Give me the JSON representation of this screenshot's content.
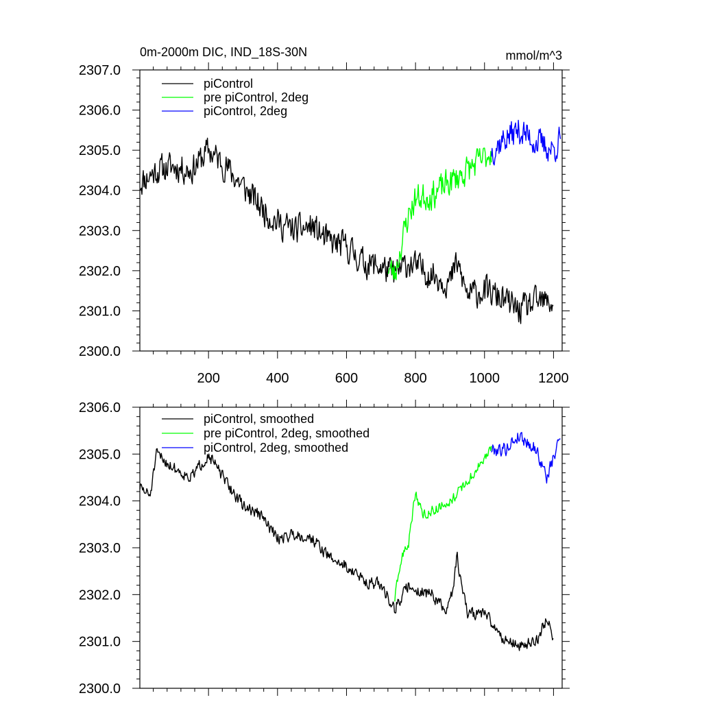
{
  "chart_data": [
    {
      "type": "line",
      "title_left": "0m-2000m DIC, IND_18S-30N",
      "title_right": "mmol/m^3",
      "xlim": [
        1,
        1225
      ],
      "ylim": [
        2300.0,
        2307.0
      ],
      "yticks": [
        2300.0,
        2301.0,
        2302.0,
        2303.0,
        2304.0,
        2305.0,
        2306.0,
        2307.0
      ],
      "ytick_labels": [
        "2300.0",
        "2301.0",
        "2302.0",
        "2303.0",
        "2304.0",
        "2305.0",
        "2306.0",
        "2307.0"
      ],
      "xticks": [
        200,
        400,
        600,
        800,
        1000,
        1200
      ],
      "xtick_labels": [
        "200",
        "400",
        "600",
        "800",
        "1000",
        "1200"
      ],
      "legend_position": "top-left",
      "series": [
        {
          "name": "piControl",
          "color": "#000000",
          "x_start": 1,
          "x_end": 1200,
          "anchors": [
            [
              1,
              2304.2
            ],
            [
              50,
              2304.5
            ],
            [
              100,
              2304.6
            ],
            [
              150,
              2304.5
            ],
            [
              200,
              2305.0
            ],
            [
              250,
              2304.6
            ],
            [
              300,
              2304.1
            ],
            [
              350,
              2303.6
            ],
            [
              400,
              2303.2
            ],
            [
              450,
              2303.0
            ],
            [
              500,
              2303.1
            ],
            [
              550,
              2302.7
            ],
            [
              600,
              2302.6
            ],
            [
              650,
              2302.2
            ],
            [
              700,
              2302.1
            ],
            [
              740,
              2301.9
            ],
            [
              780,
              2302.2
            ],
            [
              800,
              2302.1
            ],
            [
              850,
              2301.9
            ],
            [
              900,
              2301.7
            ],
            [
              920,
              2302.2
            ],
            [
              950,
              2301.4
            ],
            [
              1000,
              2301.5
            ],
            [
              1050,
              2301.3
            ],
            [
              1100,
              2301.0
            ],
            [
              1150,
              2301.2
            ],
            [
              1200,
              2301.2
            ]
          ],
          "noise": 0.5,
          "seed": 11
        },
        {
          "name": "pre piControl, 2deg",
          "color": "#00ff00",
          "x_start": 720,
          "x_end": 1020,
          "anchors": [
            [
              720,
              2302.1
            ],
            [
              740,
              2301.9
            ],
            [
              760,
              2302.7
            ],
            [
              780,
              2303.4
            ],
            [
              800,
              2303.8
            ],
            [
              850,
              2303.9
            ],
            [
              900,
              2304.2
            ],
            [
              950,
              2304.5
            ],
            [
              1000,
              2304.8
            ],
            [
              1020,
              2305.0
            ]
          ],
          "noise": 0.5,
          "seed": 23
        },
        {
          "name": "piControl, 2deg",
          "color": "#0000ff",
          "x_start": 1020,
          "x_end": 1220,
          "anchors": [
            [
              1020,
              2305.0
            ],
            [
              1060,
              2305.3
            ],
            [
              1100,
              2305.5
            ],
            [
              1150,
              2305.2
            ],
            [
              1200,
              2305.0
            ],
            [
              1220,
              2305.3
            ]
          ],
          "noise": 0.5,
          "seed": 37
        }
      ]
    },
    {
      "type": "line",
      "xlim": [
        1,
        1225
      ],
      "ylim": [
        2300.0,
        2306.0
      ],
      "yticks": [
        2300.0,
        2301.0,
        2302.0,
        2303.0,
        2304.0,
        2305.0,
        2306.0
      ],
      "ytick_labels": [
        "2300.0",
        "2301.0",
        "2302.0",
        "2303.0",
        "2304.0",
        "2305.0",
        "2306.0"
      ],
      "xticks": [
        200,
        400,
        600,
        800,
        1000,
        1200
      ],
      "legend_position": "top-left",
      "series": [
        {
          "name": "piControl, smoothed",
          "color": "#000000",
          "x_start": 1,
          "x_end": 1200,
          "anchors": [
            [
              1,
              2304.3
            ],
            [
              30,
              2304.1
            ],
            [
              50,
              2305.0
            ],
            [
              100,
              2304.7
            ],
            [
              150,
              2304.5
            ],
            [
              200,
              2305.0
            ],
            [
              250,
              2304.4
            ],
            [
              300,
              2303.9
            ],
            [
              350,
              2303.7
            ],
            [
              400,
              2303.2
            ],
            [
              450,
              2303.3
            ],
            [
              500,
              2303.2
            ],
            [
              550,
              2302.8
            ],
            [
              600,
              2302.6
            ],
            [
              650,
              2302.3
            ],
            [
              700,
              2302.2
            ],
            [
              740,
              2301.7
            ],
            [
              780,
              2302.2
            ],
            [
              800,
              2302.1
            ],
            [
              850,
              2302.0
            ],
            [
              890,
              2301.6
            ],
            [
              910,
              2302.2
            ],
            [
              920,
              2302.8
            ],
            [
              950,
              2301.6
            ],
            [
              1000,
              2301.6
            ],
            [
              1050,
              2301.1
            ],
            [
              1100,
              2300.9
            ],
            [
              1150,
              2301.0
            ],
            [
              1180,
              2301.5
            ],
            [
              1200,
              2301.1
            ]
          ],
          "noise": 0.18,
          "seed": 51
        },
        {
          "name": "pre piControl, 2deg, smoothed",
          "color": "#00ff00",
          "x_start": 740,
          "x_end": 1020,
          "anchors": [
            [
              740,
              2301.9
            ],
            [
              760,
              2302.8
            ],
            [
              780,
              2303.1
            ],
            [
              800,
              2304.2
            ],
            [
              820,
              2303.7
            ],
            [
              850,
              2303.8
            ],
            [
              900,
              2304.0
            ],
            [
              950,
              2304.4
            ],
            [
              1000,
              2304.9
            ],
            [
              1020,
              2305.1
            ]
          ],
          "noise": 0.15,
          "seed": 63
        },
        {
          "name": "piControl, 2deg, smoothed",
          "color": "#0000ff",
          "x_start": 1020,
          "x_end": 1220,
          "anchors": [
            [
              1020,
              2305.1
            ],
            [
              1060,
              2305.1
            ],
            [
              1100,
              2305.4
            ],
            [
              1150,
              2305.1
            ],
            [
              1180,
              2304.5
            ],
            [
              1200,
              2304.9
            ],
            [
              1220,
              2305.4
            ]
          ],
          "noise": 0.2,
          "seed": 79
        }
      ]
    }
  ]
}
